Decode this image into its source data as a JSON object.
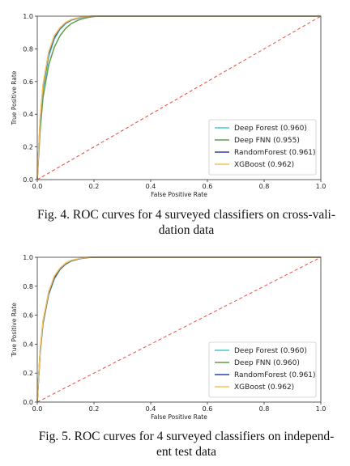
{
  "chart_data": [
    {
      "type": "line",
      "xlabel": "False Positive Rate",
      "ylabel": "True Positive Rate",
      "xlim": [
        0,
        1
      ],
      "ylim": [
        0,
        1
      ],
      "xticks": [
        "0.0",
        "0.2",
        "0.4",
        "0.6",
        "0.8",
        "1.0"
      ],
      "yticks": [
        "0.0",
        "0.2",
        "0.4",
        "0.6",
        "0.8",
        "1.0"
      ],
      "legend_position": "bottom-right",
      "series": [
        {
          "name": "Deep Forest (0.960)",
          "color": "#4dc7c0",
          "x": [
            0,
            0.01,
            0.02,
            0.04,
            0.06,
            0.08,
            0.1,
            0.12,
            0.15,
            0.18,
            0.2,
            0.3,
            0.5,
            1.0
          ],
          "y": [
            0,
            0.35,
            0.55,
            0.75,
            0.86,
            0.92,
            0.955,
            0.975,
            0.99,
            0.998,
            1.0,
            1.0,
            1.0,
            1.0
          ]
        },
        {
          "name": "Deep FNN (0.955)",
          "color": "#5e9e4a",
          "x": [
            0,
            0.01,
            0.02,
            0.04,
            0.06,
            0.08,
            0.1,
            0.12,
            0.15,
            0.18,
            0.21,
            0.3,
            0.5,
            1.0
          ],
          "y": [
            0,
            0.3,
            0.5,
            0.7,
            0.81,
            0.88,
            0.925,
            0.955,
            0.98,
            0.993,
            1.0,
            1.0,
            1.0,
            1.0
          ]
        },
        {
          "name": "RandomForest (0.961)",
          "color": "#2f3fb0",
          "x": [
            0,
            0.01,
            0.02,
            0.04,
            0.06,
            0.08,
            0.1,
            0.12,
            0.15,
            0.18,
            0.2,
            0.3,
            0.5,
            1.0
          ],
          "y": [
            0,
            0.36,
            0.57,
            0.77,
            0.87,
            0.925,
            0.958,
            0.978,
            0.992,
            0.999,
            1.0,
            1.0,
            1.0,
            1.0
          ]
        },
        {
          "name": "XGBoost (0.962)",
          "color": "#f5c15a",
          "x": [
            0,
            0.01,
            0.02,
            0.04,
            0.06,
            0.08,
            0.1,
            0.12,
            0.15,
            0.18,
            0.2,
            0.3,
            0.5,
            1.0
          ],
          "y": [
            0,
            0.37,
            0.58,
            0.78,
            0.88,
            0.93,
            0.962,
            0.98,
            0.993,
            0.999,
            1.0,
            1.0,
            1.0,
            1.0
          ]
        },
        {
          "name": "",
          "color": "#e8574a",
          "dashed": true,
          "x": [
            0,
            1
          ],
          "y": [
            0,
            1
          ]
        }
      ]
    },
    {
      "type": "line",
      "xlabel": "False Positive Rate",
      "ylabel": "True Positive Rate",
      "xlim": [
        0,
        1
      ],
      "ylim": [
        0,
        1
      ],
      "xticks": [
        "0.0",
        "0.2",
        "0.4",
        "0.6",
        "0.8",
        "1.0"
      ],
      "yticks": [
        "0.0",
        "0.2",
        "0.4",
        "0.6",
        "0.8",
        "1.0"
      ],
      "legend_position": "bottom-right",
      "series": [
        {
          "name": "Deep Forest (0.960)",
          "color": "#4dc7c0",
          "x": [
            0,
            0.01,
            0.02,
            0.04,
            0.06,
            0.08,
            0.1,
            0.12,
            0.15,
            0.18,
            0.2,
            0.3,
            0.5,
            1.0
          ],
          "y": [
            0,
            0.34,
            0.54,
            0.74,
            0.85,
            0.915,
            0.952,
            0.974,
            0.99,
            0.998,
            1.0,
            1.0,
            1.0,
            1.0
          ]
        },
        {
          "name": "Deep FNN (0.960)",
          "color": "#5e9e4a",
          "x": [
            0,
            0.01,
            0.02,
            0.04,
            0.06,
            0.08,
            0.1,
            0.12,
            0.15,
            0.18,
            0.2,
            0.3,
            0.5,
            1.0
          ],
          "y": [
            0,
            0.34,
            0.54,
            0.745,
            0.852,
            0.916,
            0.953,
            0.975,
            0.99,
            0.998,
            1.0,
            1.0,
            1.0,
            1.0
          ]
        },
        {
          "name": "RandomForest (0.961)",
          "color": "#2f3fb0",
          "x": [
            0,
            0.01,
            0.02,
            0.04,
            0.06,
            0.08,
            0.1,
            0.12,
            0.15,
            0.18,
            0.2,
            0.3,
            0.5,
            1.0
          ],
          "y": [
            0,
            0.35,
            0.55,
            0.75,
            0.86,
            0.92,
            0.956,
            0.977,
            0.991,
            0.999,
            1.0,
            1.0,
            1.0,
            1.0
          ]
        },
        {
          "name": "XGBoost (0.962)",
          "color": "#f5c15a",
          "x": [
            0,
            0.01,
            0.02,
            0.04,
            0.06,
            0.08,
            0.1,
            0.12,
            0.15,
            0.18,
            0.2,
            0.3,
            0.5,
            1.0
          ],
          "y": [
            0,
            0.36,
            0.56,
            0.76,
            0.87,
            0.925,
            0.96,
            0.979,
            0.992,
            0.999,
            1.0,
            1.0,
            1.0,
            1.0
          ]
        },
        {
          "name": "",
          "color": "#e8574a",
          "dashed": true,
          "x": [
            0,
            1
          ],
          "y": [
            0,
            1
          ]
        }
      ]
    }
  ],
  "captions": [
    {
      "line1": "Fig. 4. ROC curves for 4 surveyed classifiers on cross-vali-",
      "line2": "dation data"
    },
    {
      "line1": "Fig. 5. ROC curves for 4 surveyed classifiers on independ-",
      "line2": "ent test data"
    }
  ]
}
